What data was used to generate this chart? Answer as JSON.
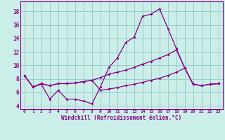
{
  "xlabel": "Windchill (Refroidissement éolien,°C)",
  "background_color": "#cceee8",
  "line_color": "#880088",
  "grid_color": "#99cccc",
  "xlim": [
    -0.5,
    23.5
  ],
  "ylim": [
    3.5,
    19.5
  ],
  "xticks": [
    0,
    1,
    2,
    3,
    4,
    5,
    6,
    7,
    8,
    9,
    10,
    11,
    12,
    13,
    14,
    15,
    16,
    17,
    18,
    19,
    20,
    21,
    22,
    23
  ],
  "yticks": [
    4,
    6,
    8,
    10,
    12,
    14,
    16,
    18
  ],
  "line1": [
    8.5,
    6.8,
    7.2,
    5.0,
    6.3,
    5.0,
    5.0,
    4.7,
    4.3,
    6.8,
    9.7,
    11.1,
    13.4,
    14.2,
    17.3,
    17.6,
    18.4,
    15.5,
    12.5,
    9.6,
    7.2,
    7.0,
    7.2,
    7.3
  ],
  "line2": [
    8.5,
    6.8,
    7.3,
    7.0,
    7.3,
    7.3,
    7.4,
    7.6,
    7.8,
    8.2,
    8.7,
    9.0,
    9.3,
    9.7,
    10.2,
    10.6,
    11.1,
    11.6,
    12.3,
    9.6,
    7.2,
    7.0,
    7.2,
    7.3
  ],
  "line3": [
    8.5,
    6.8,
    7.3,
    7.0,
    7.3,
    7.3,
    7.4,
    7.6,
    7.8,
    6.3,
    6.5,
    6.7,
    7.0,
    7.2,
    7.5,
    7.8,
    8.1,
    8.5,
    9.0,
    9.6,
    7.2,
    7.0,
    7.2,
    7.3
  ]
}
